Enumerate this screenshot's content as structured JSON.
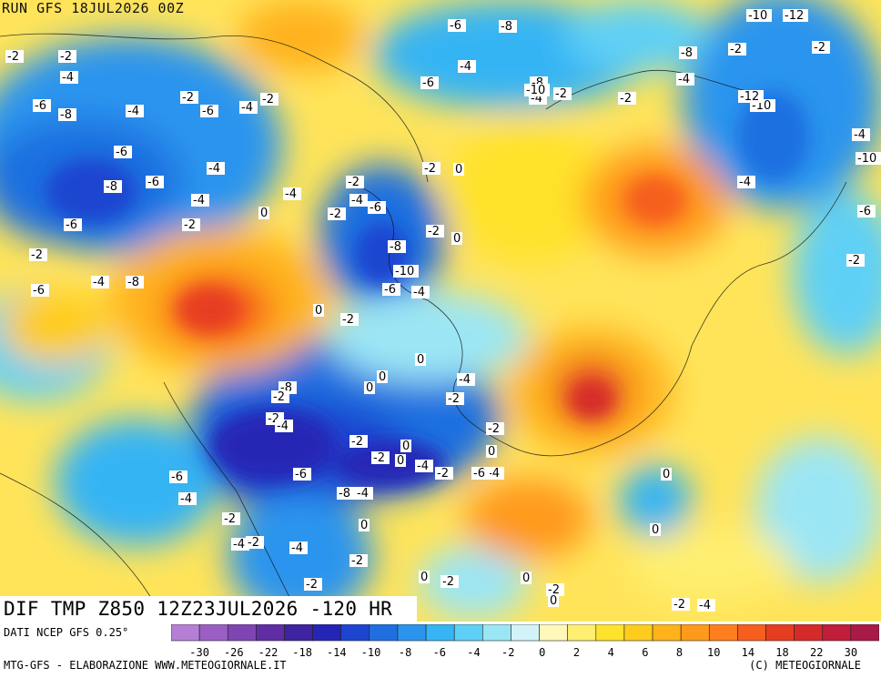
{
  "header": {
    "run_label": "RUN GFS 18JUL2026 00Z"
  },
  "panel": {
    "title": "DIF TMP Z850 12Z23JUL2026 -120 HR"
  },
  "footer": {
    "source": "DATI NCEP GFS 0.25°",
    "credit": "MTG-GFS - ELABORAZIONE WWW.METEOGIORNALE.IT",
    "copyright": "(C) METEOGIORNALE"
  },
  "colorbar": {
    "ticks": [
      "-30",
      "-26",
      "-22",
      "-18",
      "-14",
      "-10",
      "-8",
      "-6",
      "-4",
      "-2",
      "0",
      "2",
      "4",
      "6",
      "8",
      "10",
      "14",
      "18",
      "22",
      "30"
    ],
    "colors": [
      "#b57fd6",
      "#9b5fc4",
      "#7f45b3",
      "#5f2ea5",
      "#3f23a0",
      "#2525b5",
      "#1e45d0",
      "#1f6fe0",
      "#2a94ee",
      "#36b4f4",
      "#5fd0f5",
      "#9be6f5",
      "#d2f4f8",
      "#fff8b8",
      "#ffef70",
      "#ffe22c",
      "#ffcc1e",
      "#ffb21a",
      "#ff9a1a",
      "#ff7f1e",
      "#f65f1e",
      "#e63d20",
      "#d42a2a",
      "#c01e3a",
      "#a91a48"
    ]
  },
  "contour_labels": [
    {
      "t": "-2"
    },
    {
      "t": "-2"
    },
    {
      "t": "-4"
    },
    {
      "t": "-6"
    },
    {
      "t": "-8"
    },
    {
      "t": "-4"
    },
    {
      "t": "-6"
    },
    {
      "t": "-2"
    },
    {
      "t": "-4"
    },
    {
      "t": "-2"
    },
    {
      "t": "-6"
    },
    {
      "t": "-8"
    },
    {
      "t": "-6"
    },
    {
      "t": "-4"
    },
    {
      "t": "-4"
    },
    {
      "t": "-6"
    },
    {
      "t": "-2"
    },
    {
      "t": "0"
    },
    {
      "t": "-2"
    },
    {
      "t": "-4"
    },
    {
      "t": "-2"
    },
    {
      "t": "-2"
    },
    {
      "t": "0"
    },
    {
      "t": "-4"
    },
    {
      "t": "-6"
    },
    {
      "t": "-8"
    },
    {
      "t": "-10"
    },
    {
      "t": "-6"
    },
    {
      "t": "-4"
    },
    {
      "t": "-2"
    },
    {
      "t": "0"
    },
    {
      "t": "0"
    },
    {
      "t": "-2"
    },
    {
      "t": "-6"
    },
    {
      "t": "-4"
    },
    {
      "t": "-8"
    },
    {
      "t": "-6"
    },
    {
      "t": "-2"
    },
    {
      "t": "-4"
    },
    {
      "t": "-2"
    },
    {
      "t": "-8"
    },
    {
      "t": "-10"
    },
    {
      "t": "-2"
    },
    {
      "t": "-4"
    },
    {
      "t": "-8"
    },
    {
      "t": "-10"
    },
    {
      "t": "-12"
    },
    {
      "t": "-10"
    },
    {
      "t": "-12"
    },
    {
      "t": "-2"
    },
    {
      "t": "-4"
    },
    {
      "t": "-10"
    },
    {
      "t": "-4"
    },
    {
      "t": "-6"
    },
    {
      "t": "-2"
    },
    {
      "t": "-6"
    },
    {
      "t": "-2"
    },
    {
      "t": "-4"
    },
    {
      "t": "-8"
    },
    {
      "t": "-6"
    },
    {
      "t": "-8"
    },
    {
      "t": "-2"
    },
    {
      "t": "0"
    },
    {
      "t": "0"
    },
    {
      "t": "0"
    },
    {
      "t": "-2"
    },
    {
      "t": "-4"
    },
    {
      "t": "-2"
    },
    {
      "t": "0"
    },
    {
      "t": "-4"
    },
    {
      "t": "-6"
    },
    {
      "t": "-8"
    },
    {
      "t": "-4"
    },
    {
      "t": "-2"
    },
    {
      "t": "0"
    },
    {
      "t": "-2"
    },
    {
      "t": "0"
    },
    {
      "t": "-4"
    },
    {
      "t": "-2"
    },
    {
      "t": "-6"
    },
    {
      "t": "-2"
    },
    {
      "t": "-4"
    },
    {
      "t": "-6"
    },
    {
      "t": "-4"
    },
    {
      "t": "-2"
    },
    {
      "t": "-4"
    },
    {
      "t": "-2"
    },
    {
      "t": "-4"
    },
    {
      "t": "-2"
    },
    {
      "t": "0"
    },
    {
      "t": "-2"
    },
    {
      "t": "0"
    },
    {
      "t": "-2"
    },
    {
      "t": "0"
    },
    {
      "t": "-2"
    },
    {
      "t": "0"
    },
    {
      "t": "-2"
    },
    {
      "t": "-4"
    },
    {
      "t": "0"
    },
    {
      "t": "0"
    }
  ]
}
